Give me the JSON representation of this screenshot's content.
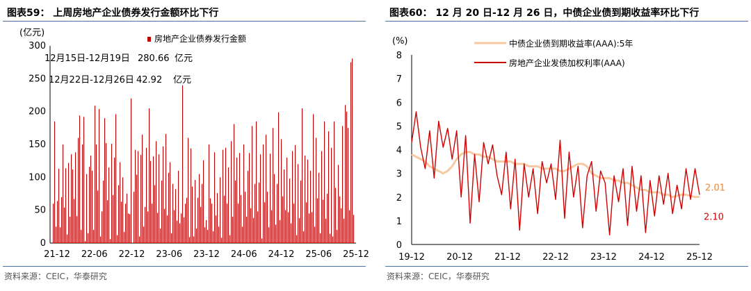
{
  "left": {
    "title": "图表59：  上周房地产企业债券发行金额环比下行",
    "source": "资料来源：CEIC，华泰研究",
    "chart_data": {
      "type": "bar",
      "ylabel": "(亿元)",
      "ylim": [
        0,
        300
      ],
      "yticks": [
        0,
        50,
        100,
        150,
        200,
        250,
        300
      ],
      "xticks": [
        "21-12",
        "22-06",
        "22-12",
        "23-06",
        "23-12",
        "24-06",
        "24-12",
        "25-06",
        "25-12"
      ],
      "legend": "房地产企业债券发行金额",
      "legend_position": "top",
      "annotations": [
        {
          "period": "12月15日-12月19日",
          "value": "280.66",
          "unit": "亿元"
        },
        {
          "period": "12月22日-12月26日",
          "value": "42.92",
          "unit": "亿元"
        }
      ],
      "color": "#c00000",
      "x_start": "2021-12",
      "x_end": "2025-12",
      "values": [
        60,
        185,
        25,
        64,
        113,
        24,
        70,
        150,
        54,
        114,
        13,
        122,
        40,
        135,
        112,
        67,
        138,
        41,
        160,
        194,
        20,
        150,
        192,
        3,
        105,
        15,
        116,
        133,
        110,
        20,
        209,
        150,
        80,
        204,
        10,
        48,
        95,
        190,
        152,
        65,
        115,
        6,
        151,
        73,
        130,
        196,
        12,
        88,
        123,
        63,
        100,
        17,
        60,
        75,
        45,
        44,
        220,
        0,
        78,
        142,
        104,
        140,
        10,
        134,
        165,
        25,
        55,
        145,
        48,
        205,
        125,
        60,
        132,
        88,
        155,
        46,
        135,
        22,
        95,
        147,
        52,
        166,
        42,
        107,
        123,
        15,
        90,
        50,
        82,
        34,
        110,
        30,
        45,
        240,
        39,
        60,
        69,
        160,
        9,
        144,
        86,
        10,
        96,
        22,
        69,
        105,
        55,
        90,
        126,
        24,
        35,
        20,
        150,
        68,
        60,
        18,
        138,
        42,
        76,
        25,
        100,
        8,
        142,
        72,
        145,
        60,
        115,
        12,
        155,
        40,
        181,
        95,
        130,
        60,
        137,
        73,
        25,
        150,
        78,
        40,
        110,
        137,
        53,
        178,
        38,
        90,
        185,
        48,
        92,
        135,
        7,
        150,
        62,
        165,
        78,
        24,
        136,
        50,
        175,
        105,
        28,
        90,
        199,
        35,
        158,
        71,
        112,
        50,
        130,
        47,
        98,
        30,
        140,
        60,
        149,
        12,
        120,
        38,
        95,
        205,
        18,
        133,
        62,
        127,
        45,
        110,
        47,
        196,
        25,
        160,
        68,
        107,
        15,
        140,
        66,
        185,
        37,
        75,
        170,
        14,
        145,
        10,
        185,
        84,
        20,
        119,
        71,
        53,
        178,
        37,
        210,
        200,
        175,
        50,
        275,
        280.66,
        42.92
      ]
    }
  },
  "right": {
    "title": "图表60：  12 月 20 日-12 月 26 日，中债企业债到期收益率环比下行",
    "source": "资料来源：CEIC，华泰研究",
    "chart_data": {
      "type": "line",
      "ylabel": "(%)",
      "ylim": [
        0,
        8
      ],
      "yticks": [
        0,
        1,
        2,
        3,
        4,
        5,
        6,
        7,
        8
      ],
      "xticks": [
        "19-12",
        "20-12",
        "21-12",
        "22-12",
        "23-12",
        "24-12",
        "25-12"
      ],
      "x_start": "2019-12",
      "x_end": "2025-12",
      "legend_position": "top",
      "series": [
        {
          "name": "中债企业债到期收益率(AAA):5年",
          "color": "#f8c8a0",
          "last_label": "2.01",
          "last_label_color": "#e8883a",
          "values": [
            3.8,
            3.7,
            3.6,
            3.5,
            3.3,
            3.2,
            3.1,
            3.0,
            3.1,
            3.3,
            3.6,
            3.8,
            3.9,
            3.9,
            3.8,
            3.8,
            3.7,
            3.7,
            3.6,
            3.5,
            3.5,
            3.5,
            3.5,
            3.4,
            3.4,
            3.4,
            3.3,
            3.3,
            3.3,
            3.2,
            3.2,
            3.2,
            3.2,
            3.1,
            3.1,
            3.2,
            3.3,
            3.4,
            3.4,
            3.3,
            3.0,
            2.9,
            2.8,
            2.8,
            2.8,
            2.7,
            2.7,
            2.6,
            2.6,
            2.5,
            2.4,
            2.3,
            2.3,
            2.2,
            2.2,
            2.2,
            2.1,
            2.1,
            2.0,
            2.05,
            2.1,
            2.1,
            2.05,
            2.0,
            2.01
          ]
        },
        {
          "name": "房地产企业发债加权利率(AAA)",
          "color": "#d00000",
          "last_label": "2.10",
          "last_label_color": "#d00000",
          "values": [
            4.3,
            5.6,
            4.1,
            3.2,
            4.8,
            2.8,
            5.2,
            4.1,
            4.9,
            3.6,
            4.8,
            2.0,
            4.6,
            0.9,
            3.8,
            1.8,
            4.3,
            3.4,
            4.2,
            2.9,
            2.1,
            3.9,
            1.5,
            3.6,
            0.6,
            3.4,
            2.0,
            3.2,
            1.3,
            3.5,
            2.6,
            3.4,
            1.9,
            4.4,
            1.1,
            3.9,
            2.0,
            3.3,
            0.7,
            2.9,
            3.5,
            1.4,
            3.1,
            2.6,
            0.4,
            2.9,
            1.8,
            3.2,
            0.8,
            3.3,
            1.4,
            2.9,
            0.5,
            2.7,
            1.2,
            2.9,
            1.7,
            3.0,
            1.3,
            2.5,
            1.5,
            3.2,
            1.9,
            3.2,
            2.1
          ]
        }
      ]
    }
  }
}
